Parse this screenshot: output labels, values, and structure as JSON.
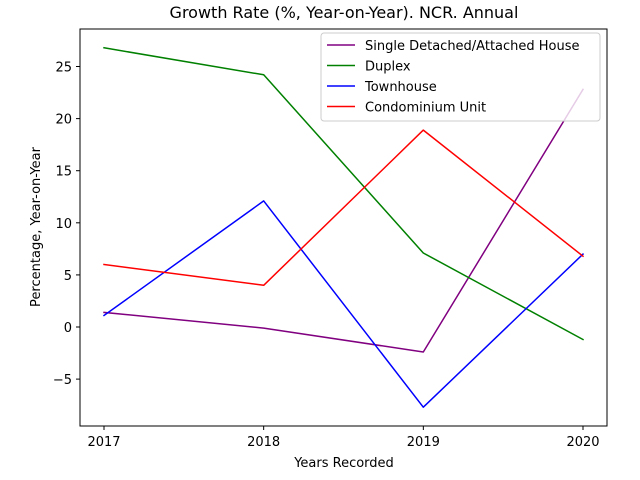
{
  "chart_data": {
    "type": "line",
    "title": "Growth Rate (%, Year-on-Year). NCR. Annual",
    "xlabel": "Years Recorded",
    "ylabel": "Percentage, Year-on-Year",
    "x": [
      "2017",
      "2018",
      "2019",
      "2020"
    ],
    "ylim": [
      -9.5,
      28.6
    ],
    "yticks": [
      -5,
      0,
      5,
      10,
      15,
      20,
      25
    ],
    "ytick_labels": [
      "−5",
      "0",
      "5",
      "10",
      "15",
      "20",
      "25"
    ],
    "grid": false,
    "legend_position": "top-right",
    "series": [
      {
        "name": "Single Detached/Attached House",
        "color": "#800080",
        "values": [
          1.4,
          -0.1,
          -2.4,
          22.8
        ]
      },
      {
        "name": "Duplex",
        "color": "#008000",
        "values": [
          26.8,
          24.2,
          7.1,
          -1.2
        ]
      },
      {
        "name": "Townhouse",
        "color": "#0000ff",
        "values": [
          1.1,
          12.1,
          -7.7,
          7.0
        ]
      },
      {
        "name": "Condominium Unit",
        "color": "#ff0000",
        "values": [
          6.0,
          4.0,
          18.9,
          6.8
        ]
      }
    ]
  }
}
